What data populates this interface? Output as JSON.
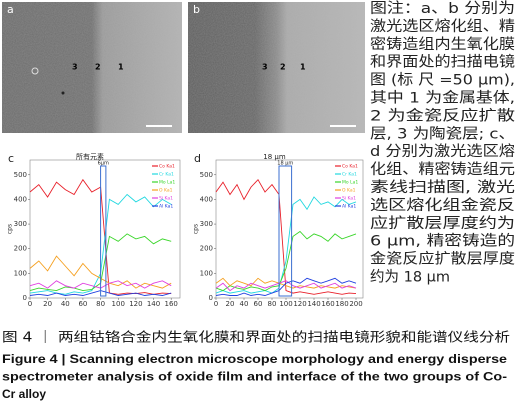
{
  "panels": [
    {
      "label": "a",
      "markers": [
        "3",
        "2",
        "1"
      ]
    },
    {
      "label": "b",
      "markers": [
        "3",
        "2",
        "1"
      ]
    }
  ],
  "chart_data": [
    {
      "type": "line",
      "panel": "c",
      "title": "所有元素",
      "y_label": "cps",
      "x": [
        0,
        10,
        20,
        30,
        40,
        50,
        60,
        70,
        80,
        90,
        100,
        110,
        120,
        130,
        140,
        150,
        160
      ],
      "series": [
        {
          "name": "Co Ka1",
          "color": "#e8202a",
          "values": [
            430,
            460,
            410,
            470,
            440,
            420,
            480,
            430,
            450,
            20,
            15,
            20,
            18,
            22,
            15,
            20,
            18
          ]
        },
        {
          "name": "Cr Ka1",
          "color": "#22d8e0",
          "values": [
            20,
            25,
            30,
            20,
            15,
            25,
            20,
            30,
            100,
            400,
            380,
            420,
            390,
            410,
            370,
            400,
            380
          ]
        },
        {
          "name": "Mo La1",
          "color": "#3ad62a",
          "values": [
            30,
            40,
            35,
            30,
            45,
            40,
            30,
            35,
            60,
            250,
            230,
            260,
            240,
            250,
            220,
            240,
            230
          ]
        },
        {
          "name": "O Ka1",
          "color": "#f5a020",
          "values": [
            120,
            150,
            110,
            170,
            130,
            90,
            140,
            100,
            80,
            60,
            50,
            70,
            40,
            60,
            50,
            40,
            60
          ]
        },
        {
          "name": "Si Ka1",
          "color": "#e040e0",
          "values": [
            50,
            60,
            40,
            70,
            50,
            40,
            60,
            50,
            40,
            60,
            70,
            50,
            60,
            40,
            60,
            70,
            50
          ]
        },
        {
          "name": "Al Ka1",
          "color": "#2040e0",
          "values": [
            10,
            15,
            10,
            20,
            10,
            15,
            10,
            20,
            30,
            20,
            10,
            15,
            20,
            10,
            15,
            10,
            20
          ]
        }
      ],
      "annotation": {
        "label": "6μm",
        "x": [
          80,
          86
        ]
      },
      "xlim": [
        0,
        170
      ],
      "xticks": [
        0,
        20,
        40,
        60,
        80,
        100,
        120,
        140,
        160
      ],
      "ylim": [
        0,
        560
      ],
      "yticks": [
        0,
        100,
        200,
        300,
        400,
        500
      ]
    },
    {
      "type": "line",
      "panel": "d",
      "title": "18 μm",
      "y_label": "cps",
      "x": [
        0,
        10,
        20,
        30,
        40,
        50,
        60,
        70,
        80,
        90,
        100,
        110,
        120,
        130,
        140,
        150,
        160,
        170,
        180,
        190,
        200
      ],
      "series": [
        {
          "name": "Co Ka1",
          "color": "#e8202a",
          "values": [
            430,
            470,
            420,
            460,
            400,
            450,
            480,
            430,
            460,
            420,
            30,
            20,
            25,
            20,
            15,
            20,
            25,
            20,
            15,
            20,
            18
          ]
        },
        {
          "name": "Cr Ka1",
          "color": "#22d8e0",
          "values": [
            20,
            30,
            20,
            25,
            30,
            20,
            25,
            30,
            20,
            40,
            150,
            380,
            400,
            360,
            410,
            380,
            390,
            370,
            400,
            380,
            390
          ]
        },
        {
          "name": "Mo La1",
          "color": "#3ad62a",
          "values": [
            40,
            30,
            50,
            40,
            35,
            45,
            40,
            30,
            45,
            50,
            120,
            250,
            270,
            240,
            260,
            250,
            230,
            260,
            240,
            250,
            260
          ]
        },
        {
          "name": "O Ka1",
          "color": "#f5a020",
          "values": [
            60,
            80,
            50,
            70,
            60,
            50,
            80,
            60,
            70,
            60,
            50,
            40,
            50,
            45,
            40,
            50,
            45,
            40,
            50,
            45,
            40
          ]
        },
        {
          "name": "Si Ka1",
          "color": "#e040e0",
          "values": [
            40,
            60,
            30,
            50,
            40,
            60,
            50,
            40,
            50,
            60,
            70,
            50,
            40,
            50,
            60,
            40,
            50,
            60,
            40,
            50,
            40
          ]
        },
        {
          "name": "Al Ka1",
          "color": "#2040e0",
          "values": [
            10,
            15,
            10,
            10,
            20,
            10,
            15,
            10,
            20,
            30,
            60,
            70,
            60,
            80,
            70,
            60,
            70,
            80,
            60,
            70,
            60
          ]
        }
      ],
      "annotation": {
        "label": "18 μm",
        "x": [
          90,
          108
        ]
      },
      "xlim": [
        0,
        210
      ],
      "xticks": [
        0,
        20,
        40,
        60,
        80,
        100,
        120,
        140,
        160,
        180,
        200
      ],
      "ylim": [
        0,
        560
      ],
      "yticks": [
        0,
        100,
        200,
        300,
        400,
        500
      ]
    }
  ],
  "note": [
    "图注：a、b 分别为",
    "激光选区熔化组、精",
    "密铸造组内生氧化膜",
    "和界面处的扫描电镜",
    "图 (标 尺 =50 μm),",
    "其中 1 为金属基体,",
    "2 为金瓷反应扩散",
    "层, 3 为陶瓷层; c、",
    "d 分别为激光选区熔",
    "化组、精密铸造组元",
    "素线扫描图, 激光",
    "选区熔化组金瓷反",
    "应扩散层厚度约为",
    "6 μm, 精密铸造的",
    "金瓷反应扩散层厚度",
    "约为 18 μm"
  ],
  "caption": {
    "zh": "图 4 ｜ 两组钴铬合金内生氧化膜和界面处的扫描电镜形貌和能谱仪线分析",
    "en": [
      "Figure 4 | Scanning electron microscope morphology and energy disperse",
      "spectrometer analysis of oxide film and interface of the two groups of Co-",
      "Cr alloy"
    ]
  }
}
